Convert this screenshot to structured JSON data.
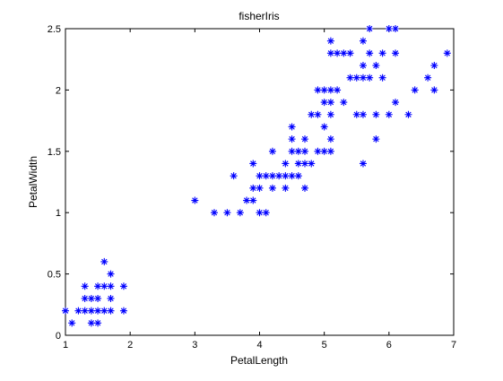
{
  "chart_data": {
    "type": "scatter",
    "title": "fisherIris",
    "xlabel": "PetalLength",
    "ylabel": "PetalWidth",
    "xlim": [
      1,
      7
    ],
    "ylim": [
      0,
      2.5
    ],
    "xticks": [
      1,
      2,
      3,
      4,
      5,
      6,
      7
    ],
    "yticks": [
      0,
      0.5,
      1,
      1.5,
      2,
      2.5
    ],
    "xtick_labels": [
      "1",
      "2",
      "3",
      "4",
      "5",
      "6",
      "7"
    ],
    "ytick_labels": [
      "0",
      "0.5",
      "1",
      "1.5",
      "2",
      "2.5"
    ],
    "grid": false,
    "marker": "*",
    "marker_color": "#0000ff",
    "axes_color": "#000000",
    "background": "#ffffff",
    "points": [
      [
        1.0,
        0.2
      ],
      [
        1.1,
        0.1
      ],
      [
        1.2,
        0.2
      ],
      [
        1.3,
        0.2
      ],
      [
        1.3,
        0.3
      ],
      [
        1.3,
        0.4
      ],
      [
        1.4,
        0.1
      ],
      [
        1.4,
        0.2
      ],
      [
        1.4,
        0.3
      ],
      [
        1.5,
        0.1
      ],
      [
        1.5,
        0.2
      ],
      [
        1.5,
        0.3
      ],
      [
        1.5,
        0.4
      ],
      [
        1.6,
        0.2
      ],
      [
        1.6,
        0.4
      ],
      [
        1.6,
        0.6
      ],
      [
        1.7,
        0.2
      ],
      [
        1.7,
        0.3
      ],
      [
        1.7,
        0.4
      ],
      [
        1.7,
        0.5
      ],
      [
        1.9,
        0.2
      ],
      [
        1.9,
        0.4
      ],
      [
        3.0,
        1.1
      ],
      [
        3.3,
        1.0
      ],
      [
        3.5,
        1.0
      ],
      [
        3.6,
        1.3
      ],
      [
        3.7,
        1.0
      ],
      [
        3.8,
        1.1
      ],
      [
        3.9,
        1.1
      ],
      [
        3.9,
        1.2
      ],
      [
        3.9,
        1.4
      ],
      [
        4.0,
        1.0
      ],
      [
        4.0,
        1.2
      ],
      [
        4.0,
        1.3
      ],
      [
        4.1,
        1.0
      ],
      [
        4.1,
        1.3
      ],
      [
        4.2,
        1.2
      ],
      [
        4.2,
        1.3
      ],
      [
        4.2,
        1.5
      ],
      [
        4.3,
        1.3
      ],
      [
        4.4,
        1.2
      ],
      [
        4.4,
        1.3
      ],
      [
        4.4,
        1.4
      ],
      [
        4.5,
        1.3
      ],
      [
        4.5,
        1.5
      ],
      [
        4.5,
        1.6
      ],
      [
        4.5,
        1.7
      ],
      [
        4.6,
        1.3
      ],
      [
        4.6,
        1.4
      ],
      [
        4.6,
        1.5
      ],
      [
        4.7,
        1.2
      ],
      [
        4.7,
        1.4
      ],
      [
        4.7,
        1.5
      ],
      [
        4.7,
        1.6
      ],
      [
        4.8,
        1.4
      ],
      [
        4.8,
        1.8
      ],
      [
        4.9,
        1.5
      ],
      [
        4.9,
        1.8
      ],
      [
        4.9,
        2.0
      ],
      [
        5.0,
        1.5
      ],
      [
        5.0,
        1.7
      ],
      [
        5.0,
        1.9
      ],
      [
        5.0,
        2.0
      ],
      [
        5.1,
        1.5
      ],
      [
        5.1,
        1.6
      ],
      [
        5.1,
        1.8
      ],
      [
        5.1,
        1.9
      ],
      [
        5.1,
        2.0
      ],
      [
        5.1,
        2.3
      ],
      [
        5.1,
        2.4
      ],
      [
        5.2,
        2.0
      ],
      [
        5.2,
        2.3
      ],
      [
        5.3,
        1.9
      ],
      [
        5.3,
        2.3
      ],
      [
        5.4,
        2.1
      ],
      [
        5.4,
        2.3
      ],
      [
        5.5,
        1.8
      ],
      [
        5.5,
        2.1
      ],
      [
        5.6,
        1.4
      ],
      [
        5.6,
        1.8
      ],
      [
        5.6,
        2.1
      ],
      [
        5.6,
        2.2
      ],
      [
        5.6,
        2.4
      ],
      [
        5.7,
        2.1
      ],
      [
        5.7,
        2.3
      ],
      [
        5.7,
        2.5
      ],
      [
        5.8,
        1.6
      ],
      [
        5.8,
        1.8
      ],
      [
        5.8,
        2.2
      ],
      [
        5.9,
        2.1
      ],
      [
        5.9,
        2.3
      ],
      [
        6.0,
        1.8
      ],
      [
        6.0,
        2.5
      ],
      [
        6.1,
        1.9
      ],
      [
        6.1,
        2.3
      ],
      [
        6.1,
        2.5
      ],
      [
        6.3,
        1.8
      ],
      [
        6.4,
        2.0
      ],
      [
        6.6,
        2.1
      ],
      [
        6.7,
        2.0
      ],
      [
        6.7,
        2.2
      ],
      [
        6.9,
        2.3
      ]
    ]
  }
}
